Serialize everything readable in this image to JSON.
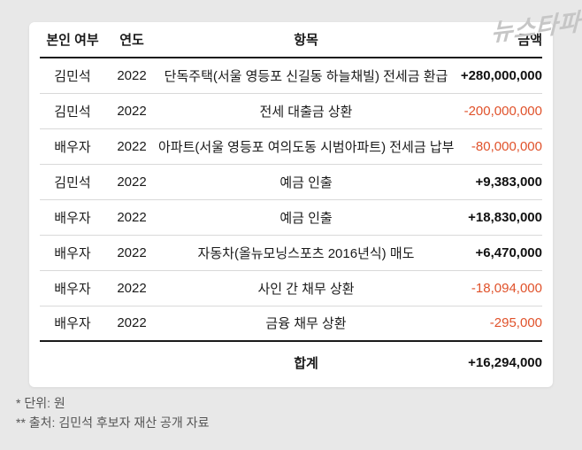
{
  "logo": {
    "text": "뉴스타파"
  },
  "chart_data": {
    "type": "table",
    "columns": [
      "본인 여부",
      "연도",
      "항목",
      "금액"
    ],
    "rows": [
      {
        "person": "김민석",
        "year": "2022",
        "item": "단독주택(서울 영등포 신길동 하늘채빌) 전세금 환급",
        "amount": "+280,000,000",
        "amount_value": 280000000
      },
      {
        "person": "김민석",
        "year": "2022",
        "item": "전세 대출금 상환",
        "amount": "-200,000,000",
        "amount_value": -200000000
      },
      {
        "person": "배우자",
        "year": "2022",
        "item": "아파트(서울 영등포 여의도동 시범아파트) 전세금 납부",
        "amount": "-80,000,000",
        "amount_value": -80000000
      },
      {
        "person": "김민석",
        "year": "2022",
        "item": "예금 인출",
        "amount": "+9,383,000",
        "amount_value": 9383000
      },
      {
        "person": "배우자",
        "year": "2022",
        "item": "예금 인출",
        "amount": "+18,830,000",
        "amount_value": 18830000
      },
      {
        "person": "배우자",
        "year": "2022",
        "item": "자동차(올뉴모닝스포츠 2016년식) 매도",
        "amount": "+6,470,000",
        "amount_value": 6470000
      },
      {
        "person": "배우자",
        "year": "2022",
        "item": "사인 간 채무 상환",
        "amount": "-18,094,000",
        "amount_value": -18094000
      },
      {
        "person": "배우자",
        "year": "2022",
        "item": "금융 채무 상환",
        "amount": "-295,000",
        "amount_value": -295000
      }
    ],
    "total": {
      "label": "합계",
      "amount": "+16,294,000",
      "amount_value": 16294000
    }
  },
  "footnotes": {
    "unit": "* 단위: 원",
    "source": "** 출처: 김민석 후보자 재산 공개 자료"
  },
  "colors": {
    "background": "#e8e8e8",
    "card": "#ffffff",
    "text": "#1a1a1a",
    "negative_amount": "#e0522b",
    "positive_amount": "#111111",
    "row_divider": "#d9d9d9",
    "strong_divider": "#1a1a1a",
    "footnote_text": "#555555",
    "logo": "#c6c6c6"
  }
}
